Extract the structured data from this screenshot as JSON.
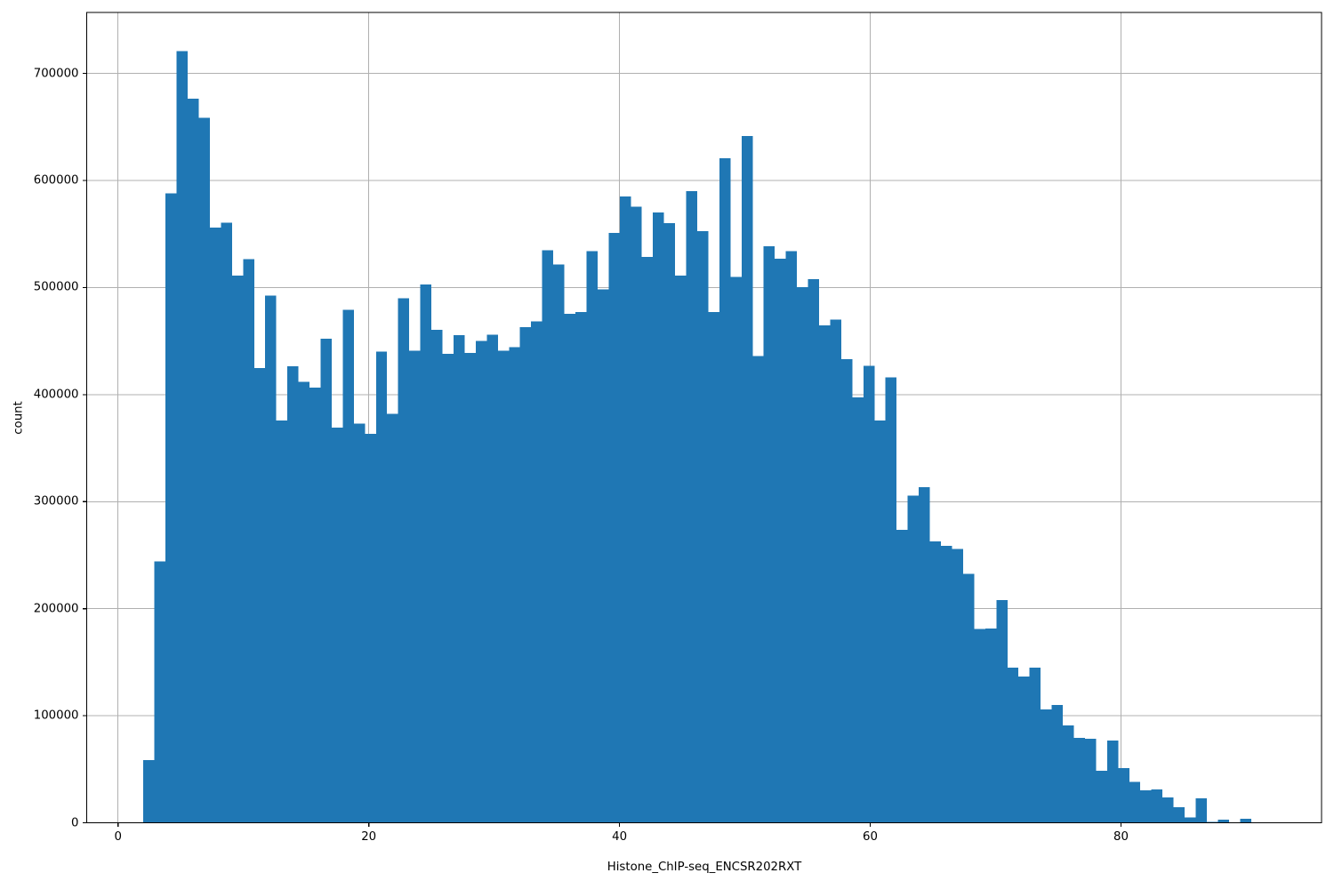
{
  "figure": {
    "background": "#ffffff"
  },
  "chart_data": {
    "type": "bar",
    "subtype": "histogram",
    "title": "",
    "xlabel": "Histone_ChIP-seq_ENCSR202RXT",
    "ylabel": "count",
    "legend": false,
    "grid": true,
    "grid_color": "#b0b0b0",
    "bar_color": "#1f77b4",
    "spine_color": "#000000",
    "xlim": [
      -2.5,
      96.0
    ],
    "ylim": [
      0,
      757000
    ],
    "x_ticks": [
      0,
      20,
      40,
      60,
      80
    ],
    "y_ticks": [
      0,
      100000,
      200000,
      300000,
      400000,
      500000,
      600000,
      700000
    ],
    "bin_start": 2.02,
    "bin_width": 0.8836,
    "counts": [
      58500,
      244000,
      588000,
      721000,
      676500,
      658500,
      556000,
      560500,
      511000,
      526500,
      425000,
      492500,
      376000,
      426500,
      412000,
      406500,
      452000,
      369000,
      479000,
      373000,
      363500,
      440000,
      382000,
      490000,
      441000,
      503000,
      460500,
      438000,
      455500,
      439000,
      450000,
      456000,
      441000,
      444500,
      463000,
      468500,
      535000,
      521500,
      475500,
      477000,
      534000,
      498500,
      551000,
      585000,
      575500,
      528500,
      570000,
      560000,
      511000,
      590000,
      552500,
      477000,
      621000,
      510000,
      641500,
      436000,
      538500,
      527000,
      534000,
      500500,
      508000,
      464500,
      470000,
      433000,
      397500,
      427000,
      376000,
      416000,
      273500,
      305500,
      313500,
      263000,
      258500,
      256000,
      232500,
      181000,
      181500,
      208000,
      145000,
      136500,
      145000,
      106000,
      110000,
      91000,
      79500,
      78500,
      48500,
      77000,
      51000,
      38000,
      30500,
      31300,
      23500,
      14500,
      5000,
      23000,
      800,
      2900,
      600,
      3900
    ]
  }
}
